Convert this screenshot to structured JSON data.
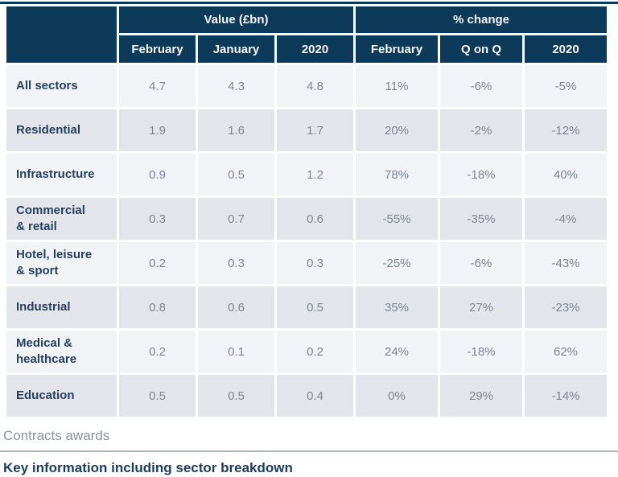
{
  "colors": {
    "header_bg": "#0e3a59",
    "header_text": "#f5f7fa",
    "row_light": "#f2f3f7",
    "row_dark": "#e3e5eb",
    "sector_label_text": "#25405e",
    "value_text": "#7c8594",
    "footer_label_text": "#8b919e",
    "footer_rule": "#aeb3bc",
    "top_line": "#0e3a59"
  },
  "table": {
    "group_headers": [
      {
        "label": "Value (£bn)",
        "span": 3
      },
      {
        "label": "% change",
        "span": 3
      }
    ],
    "column_headers": [
      "February",
      "January",
      "2020",
      "February",
      "Q on Q",
      "2020"
    ],
    "rows": [
      {
        "label": "All sectors",
        "values": [
          "4.7",
          "4.3",
          "4.8",
          "11%",
          "-6%",
          "-5%"
        ]
      },
      {
        "label": "Residential",
        "values": [
          "1.9",
          "1.6",
          "1.7",
          "20%",
          "-2%",
          "-12%"
        ]
      },
      {
        "label": "Infrastructure",
        "values": [
          "0.9",
          "0.5",
          "1.2",
          "78%",
          "-18%",
          "40%"
        ]
      },
      {
        "label": "Commercial\n& retail",
        "values": [
          "0.3",
          "0.7",
          "0.6",
          "-55%",
          "-35%",
          "-4%"
        ]
      },
      {
        "label": "Hotel, leisure\n& sport",
        "values": [
          "0.2",
          "0.3",
          "0.3",
          "-25%",
          "-6%",
          "-43%"
        ]
      },
      {
        "label": "Industrial",
        "values": [
          "0.8",
          "0.6",
          "0.5",
          "35%",
          "27%",
          "-23%"
        ]
      },
      {
        "label": "Medical &\nhealthcare",
        "values": [
          "0.2",
          "0.1",
          "0.2",
          "24%",
          "-18%",
          "62%"
        ]
      },
      {
        "label": "Education",
        "values": [
          "0.5",
          "0.5",
          "0.4",
          "0%",
          "29%",
          "-14%"
        ]
      }
    ]
  },
  "footer": {
    "tab_label": "Contracts awards",
    "heading": "Key information including sector breakdown"
  }
}
